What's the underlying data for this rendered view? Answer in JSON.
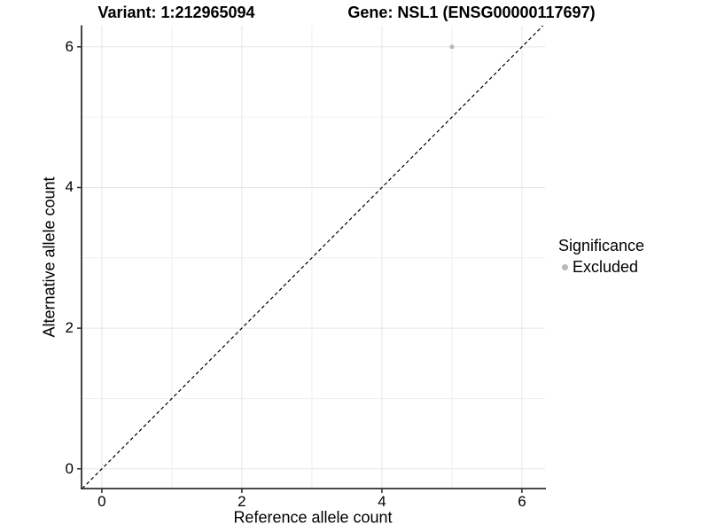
{
  "titles": {
    "left": "Variant: 1:212965094",
    "right": "Gene: NSL1 (ENSG00000117697)"
  },
  "chart_data": {
    "type": "scatter",
    "xlabel": "Reference allele count",
    "ylabel": "Alternative allele count",
    "xlim": [
      -0.29,
      6.33
    ],
    "ylim": [
      -0.28,
      6.3
    ],
    "x_ticks": [
      0,
      2,
      4,
      6
    ],
    "y_ticks": [
      0,
      2,
      4,
      6
    ],
    "x_minor_ticks": [
      1,
      3,
      5
    ],
    "y_minor_ticks": [
      1,
      3,
      5
    ],
    "grid": "major and minor, light gray on white",
    "identity_line": {
      "style": "dashed",
      "slope": 1,
      "intercept": 0,
      "color": "#000000"
    },
    "series": [
      {
        "name": "Excluded",
        "points": [
          [
            5,
            6
          ]
        ],
        "color": "#b9b9b9",
        "point_radius": 2.5
      }
    ],
    "legend": {
      "position": "right",
      "title": "Significance",
      "items": [
        {
          "label": "Excluded",
          "color": "#b9b9b9"
        }
      ]
    },
    "colors": {
      "major_grid": "#e5e5e5",
      "minor_grid": "#f0f0f0",
      "axis_line": "#2f2f2f",
      "tick_mark": "#2f2f2f"
    }
  }
}
